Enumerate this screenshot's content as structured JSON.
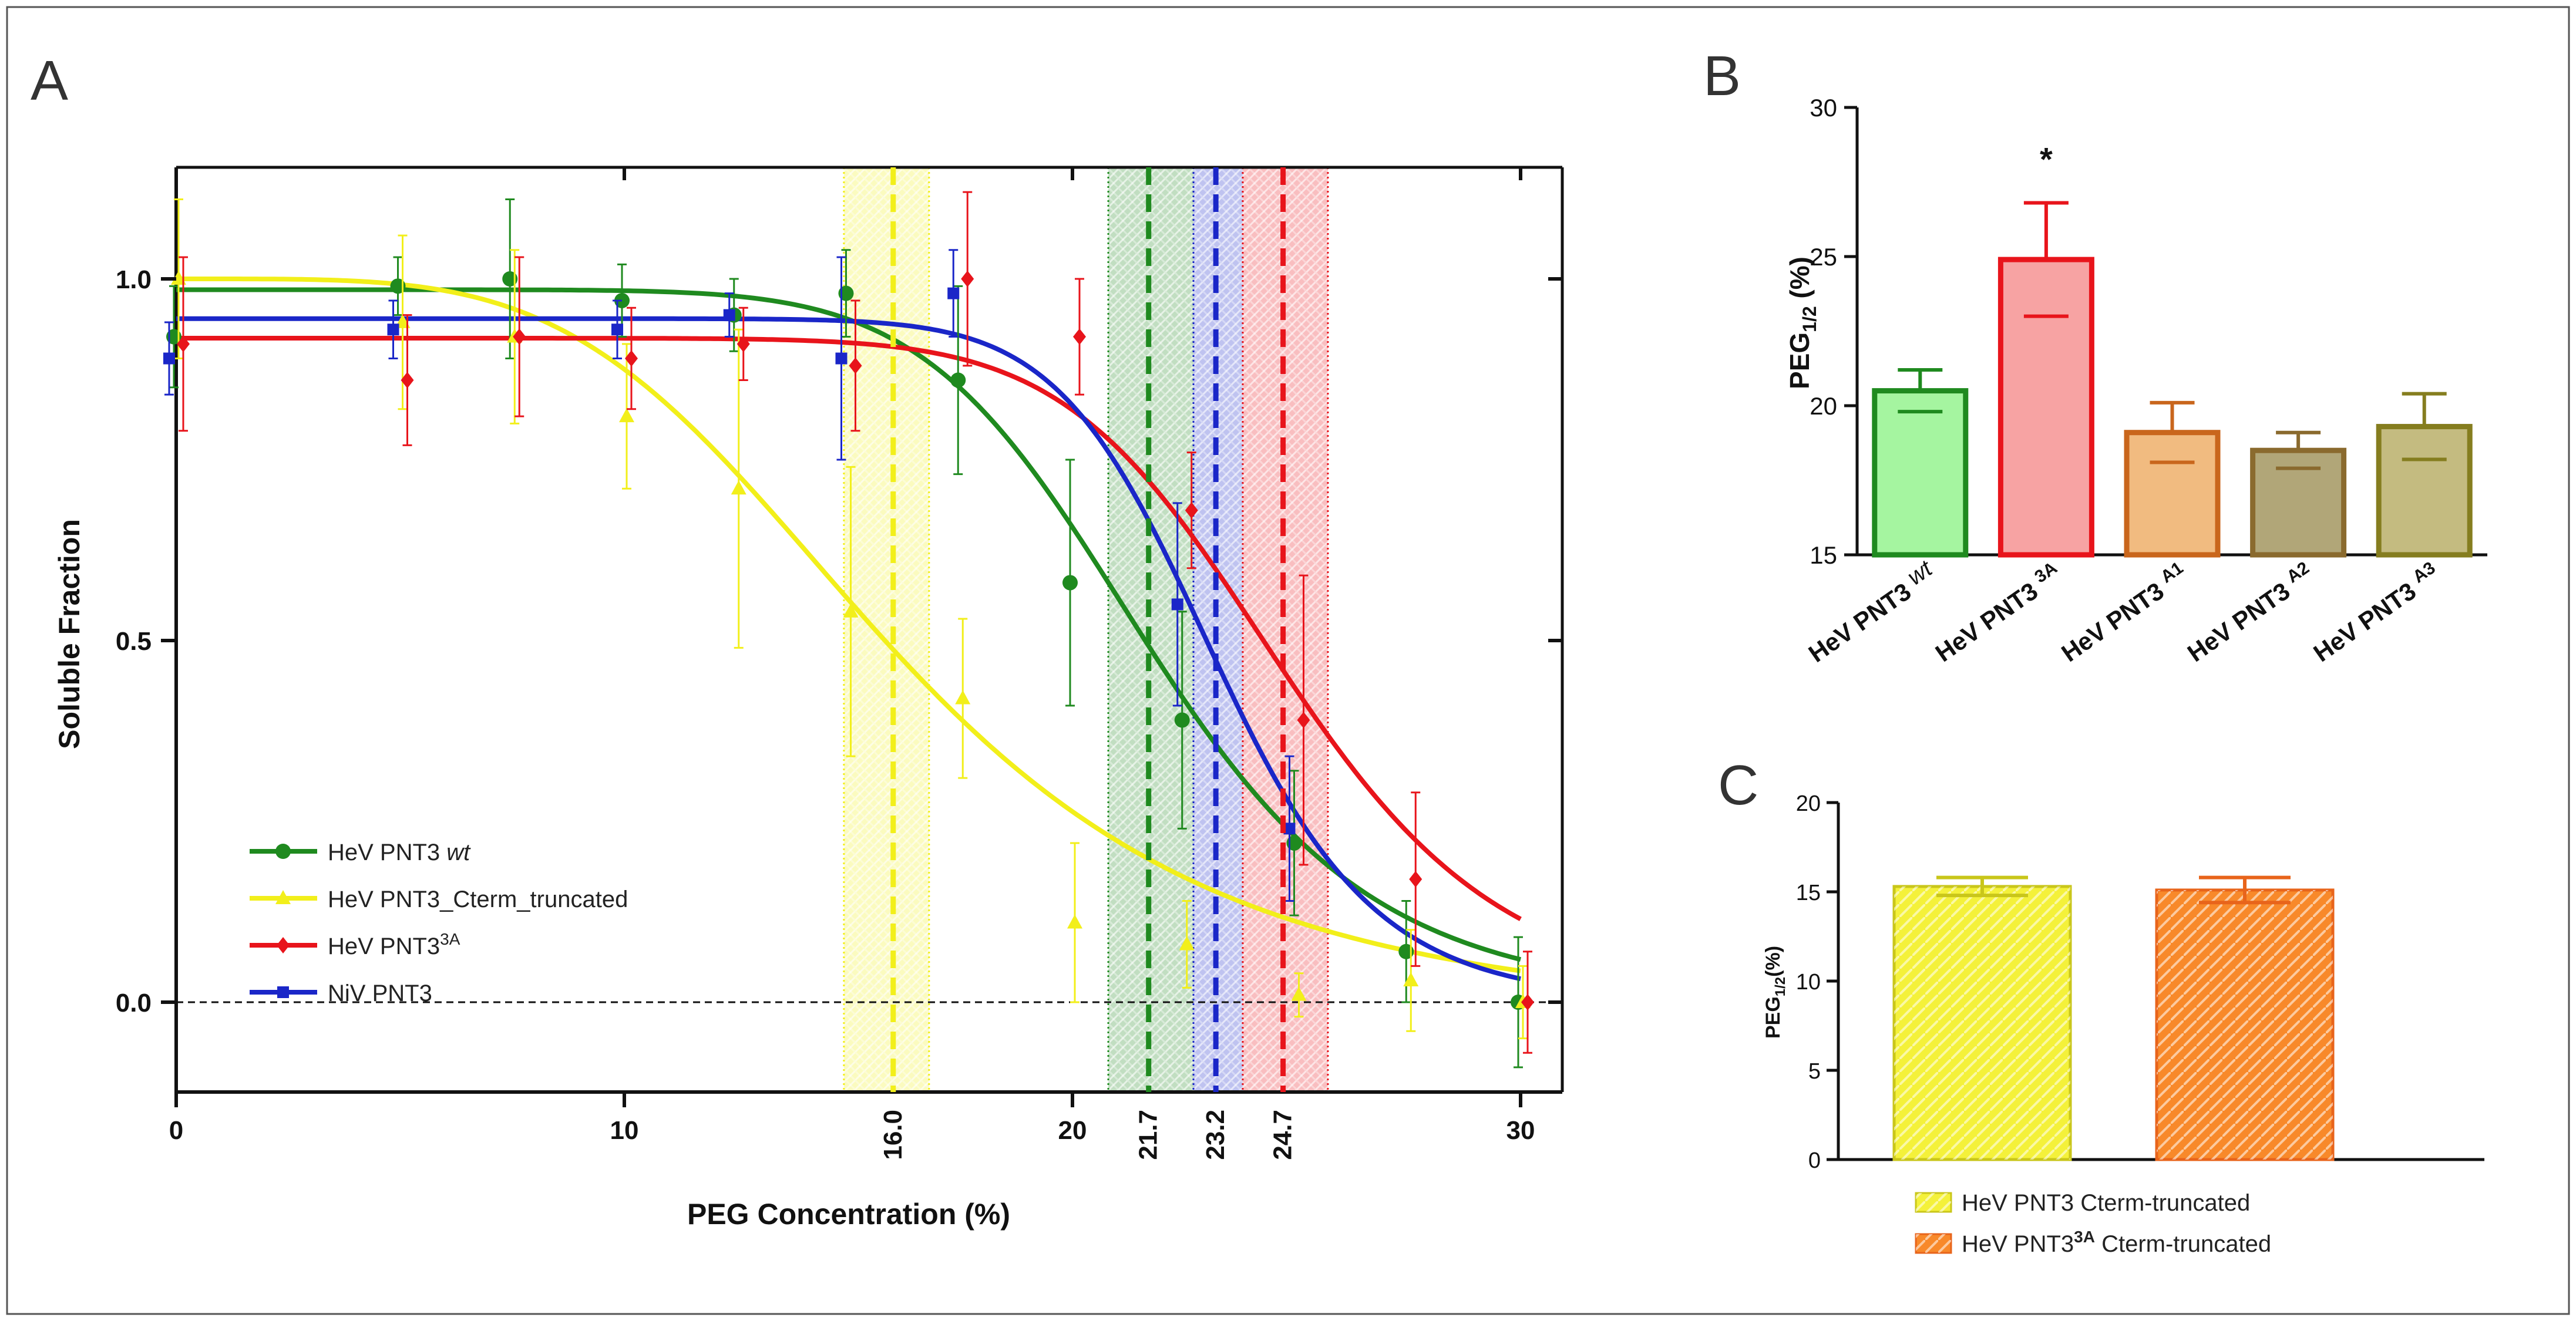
{
  "panels": {
    "A": "A",
    "B": "B",
    "C": "C"
  },
  "chart_data": [
    {
      "type": "scatter",
      "panel": "A",
      "xlabel": "PEG Concentration (%)",
      "ylabel": "Soluble Fraction",
      "xlim": [
        0,
        31
      ],
      "ylim": [
        -0.12,
        1.15
      ],
      "xticks": [
        "0",
        "10",
        "20",
        "30"
      ],
      "yticks": [
        "0.0",
        "0.5",
        "1.0"
      ],
      "legend_position": "bottom-left",
      "baseline": 0,
      "series": [
        {
          "name": "HeV PNT3",
          "name_suffix": "wt",
          "color": "#1f8a1f",
          "marker": "circle",
          "x": [
            0,
            5,
            7.5,
            10,
            12.5,
            15,
            17.5,
            20,
            22.5,
            25,
            27.5,
            30
          ],
          "y": [
            0.92,
            0.99,
            1.0,
            0.97,
            0.95,
            0.98,
            0.86,
            0.58,
            0.39,
            0.22,
            0.07,
            0.0
          ],
          "err": [
            0.07,
            0.04,
            0.11,
            0.05,
            0.05,
            0.06,
            0.13,
            0.17,
            0.15,
            0.1,
            0.07,
            0.09
          ],
          "fit": {
            "top": 0.985,
            "bottom": 0.0,
            "x50": 21.7,
            "hill": 8.5
          }
        },
        {
          "name": "HeV PNT3_Cterm_truncated",
          "color": "#f2ef1a",
          "marker": "triangle",
          "x": [
            0,
            5,
            7.5,
            10,
            12.5,
            15,
            17.5,
            20,
            22.5,
            25,
            27.5,
            30
          ],
          "y": [
            1.0,
            0.94,
            0.92,
            0.81,
            0.71,
            0.54,
            0.42,
            0.11,
            0.08,
            0.01,
            0.03,
            0.0
          ],
          "err": [
            0.11,
            0.12,
            0.12,
            0.1,
            0.22,
            0.2,
            0.11,
            0.11,
            0.06,
            0.03,
            0.07,
            0.05
          ],
          "fit": {
            "top": 1.0,
            "bottom": -0.025,
            "x50": 16.0,
            "hill": 4.2
          }
        },
        {
          "name": "HeV PNT3",
          "name_sup": "3A",
          "color": "#e8141b",
          "marker": "diamond",
          "x": [
            0,
            5,
            7.5,
            10,
            12.5,
            15,
            17.5,
            20,
            22.5,
            25,
            27.5,
            30
          ],
          "y": [
            0.91,
            0.86,
            0.92,
            0.89,
            0.91,
            0.88,
            1.0,
            0.92,
            0.68,
            0.39,
            0.17,
            0.0
          ],
          "err": [
            0.12,
            0.09,
            0.11,
            0.07,
            0.05,
            0.09,
            0.12,
            0.08,
            0.08,
            0.2,
            0.12,
            0.07
          ],
          "fit": {
            "top": 0.918,
            "bottom": 0.0,
            "x50": 24.7,
            "hill": 10.0
          }
        },
        {
          "name": "NiV PNT3",
          "color": "#1a26c8",
          "marker": "square",
          "x": [
            0,
            5,
            10,
            12.5,
            15,
            17.5,
            22.5,
            25
          ],
          "y": [
            0.89,
            0.93,
            0.93,
            0.95,
            0.89,
            0.98,
            0.55,
            0.24
          ],
          "err": [
            0.05,
            0.04,
            0.04,
            0.03,
            0.14,
            0.06,
            0.14,
            0.1
          ],
          "fit": {
            "top": 0.945,
            "bottom": 0.0,
            "x50": 23.2,
            "hill": 13.0
          }
        }
      ],
      "midpoints": [
        {
          "label": "16.0",
          "x": 16.0,
          "band": [
            14.9,
            16.8
          ],
          "color": "#f2ef1a"
        },
        {
          "label": "21.7",
          "x": 21.7,
          "band": [
            20.8,
            22.7
          ],
          "color": "#1f8a1f"
        },
        {
          "label": "23.2",
          "x": 23.2,
          "band": [
            22.7,
            23.8
          ],
          "color": "#1a26c8"
        },
        {
          "label": "24.7",
          "x": 24.7,
          "band": [
            23.8,
            25.7
          ],
          "color": "#e8141b"
        }
      ]
    },
    {
      "type": "bar",
      "panel": "B",
      "ylabel": "PEG",
      "ylabel_sub": "1/2",
      "ylabel_suffix": " (%)",
      "ylim": [
        15,
        30
      ],
      "yticks": [
        "15",
        "20",
        "25",
        "30"
      ],
      "categories": [
        {
          "base": "HeV PNT3 ",
          "sup": "",
          "italic": "wt"
        },
        {
          "base": "HeV PNT3 ",
          "sup": "3A",
          "italic": ""
        },
        {
          "base": "HeV PNT3 ",
          "sup": "A1",
          "italic": ""
        },
        {
          "base": "HeV PNT3 ",
          "sup": "A2",
          "italic": ""
        },
        {
          "base": "HeV PNT3 ",
          "sup": "A3",
          "italic": ""
        }
      ],
      "values": [
        20.5,
        24.9,
        19.1,
        18.5,
        19.3
      ],
      "errors": [
        0.7,
        1.9,
        1.0,
        0.6,
        1.1
      ],
      "fill_colors": [
        "#a5f5a0",
        "#f7a3a3",
        "#f1bb80",
        "#b1a678",
        "#c4bb80"
      ],
      "edge_colors": [
        "#1f8a1f",
        "#e8141b",
        "#c9661c",
        "#8a6a2e",
        "#857d1f"
      ],
      "annotation": {
        "text": "*",
        "category_index": 1
      }
    },
    {
      "type": "bar",
      "panel": "C",
      "ylabel": "PEG",
      "ylabel_sub": "1/2",
      "ylabel_suffix": "(%)",
      "ylim": [
        0,
        20
      ],
      "yticks": [
        "0",
        "5",
        "10",
        "15",
        "20"
      ],
      "values": [
        15.3,
        15.1
      ],
      "errors": [
        0.5,
        0.7
      ],
      "fill_colors": [
        "#f4f13a",
        "#f8892a"
      ],
      "edge_colors": [
        "#c9c61a",
        "#e8641b"
      ],
      "legend": [
        {
          "base": "HeV PNT3 Cterm-truncated",
          "sup": ""
        },
        {
          "base": "HeV PNT3",
          "sup": "3A",
          "suffix": " Cterm-truncated"
        }
      ],
      "legend_position": "bottom"
    }
  ]
}
